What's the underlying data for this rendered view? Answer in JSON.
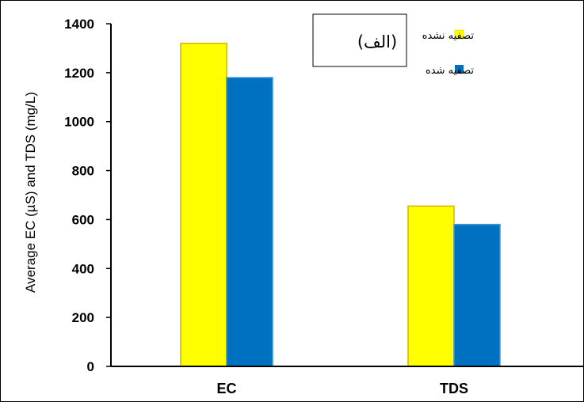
{
  "chart_data": {
    "type": "bar",
    "categories": [
      "EC",
      "TDS"
    ],
    "series": [
      {
        "name": "تصفیه نشده",
        "values": [
          1320,
          655
        ],
        "color": "#ffff00"
      },
      {
        "name": "تصفیه شده",
        "values": [
          1180,
          580
        ],
        "color": "#0070c0"
      }
    ],
    "ylabel": "Average EC (µS) and TDS (mg/L)",
    "xlabel": "",
    "ylim": [
      0,
      1400
    ],
    "yticks": [
      0,
      200,
      400,
      600,
      800,
      1000,
      1200,
      1400
    ],
    "panel_label": "(الف)",
    "legend_position": "top-right",
    "grid": false
  }
}
